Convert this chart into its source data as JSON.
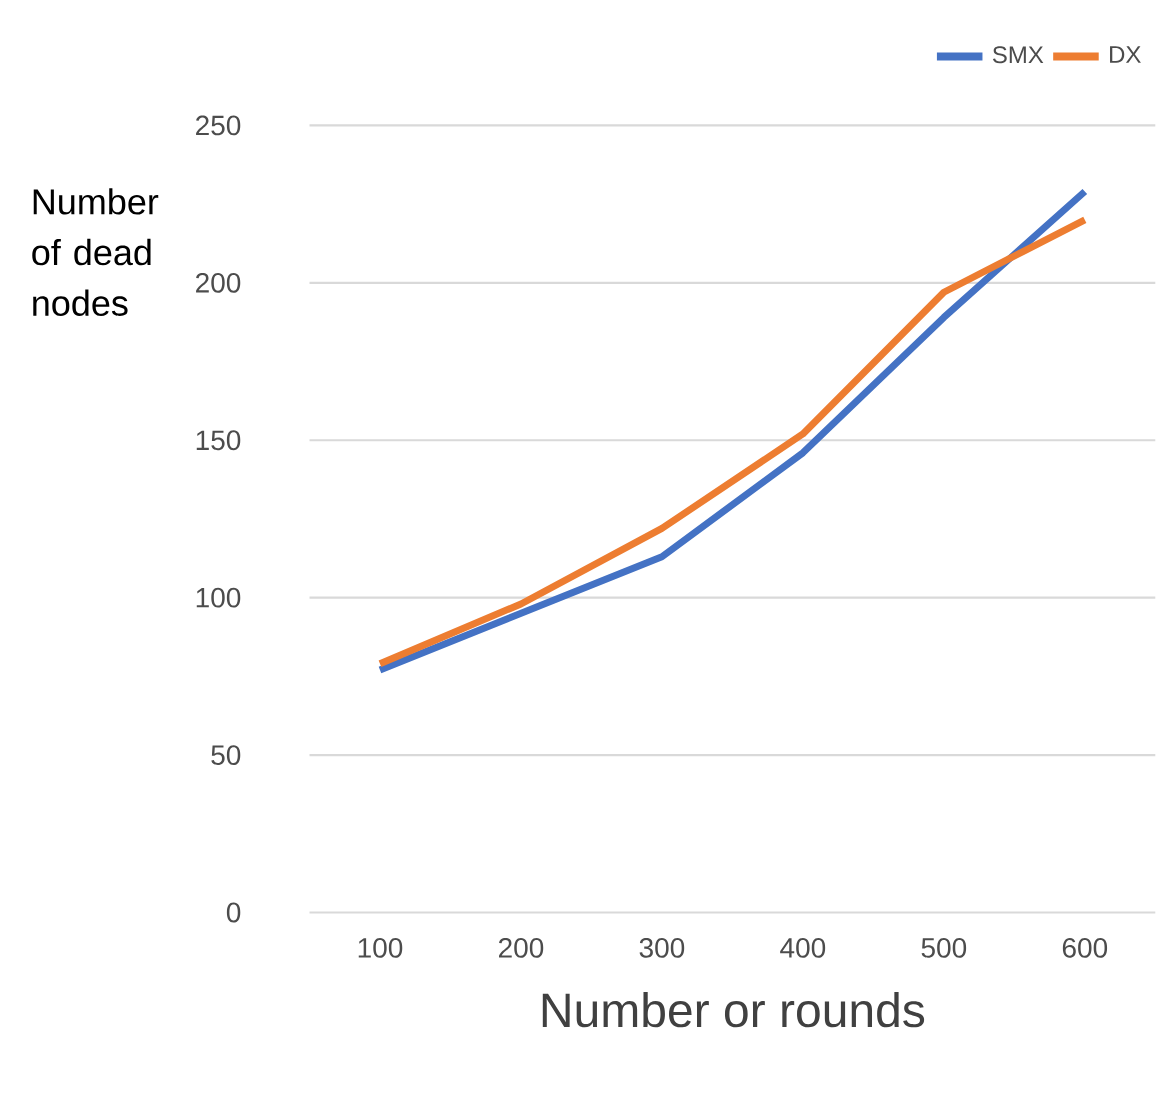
{
  "chart_data": {
    "type": "line",
    "xlabel": "Number or rounds",
    "ylabel": "Number of dead nodes",
    "categories": [
      "100",
      "200",
      "300",
      "400",
      "500",
      "600"
    ],
    "series": [
      {
        "name": "SMX",
        "color": "#4472c4",
        "values": [
          77,
          95,
          113,
          146,
          189,
          229
        ]
      },
      {
        "name": "DX",
        "color": "#ed7d31",
        "values": [
          79,
          98,
          122,
          152,
          197,
          220
        ]
      }
    ],
    "ylim": [
      0,
      250
    ],
    "yticks": [
      0,
      50,
      100,
      150,
      200,
      250
    ],
    "grid": "y",
    "legend": "top right",
    "marker": "none",
    "line_style": "solid"
  }
}
